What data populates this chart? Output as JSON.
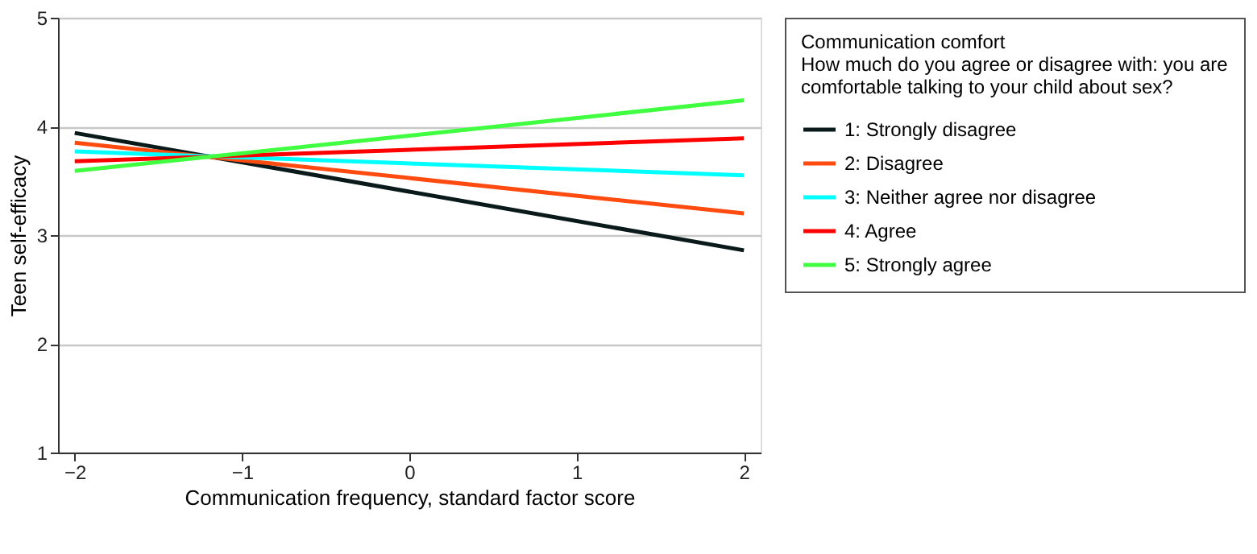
{
  "chart_data": {
    "type": "line",
    "x": [
      -2,
      2
    ],
    "series": [
      {
        "name": "1: Strongly disagree",
        "color": "#0a1a1a",
        "values": [
          3.94,
          2.86
        ]
      },
      {
        "name": "2: Disagree",
        "color": "#ff4b0f",
        "values": [
          3.85,
          3.2
        ]
      },
      {
        "name": "3: Neither agree nor disagree",
        "color": "#00ffff",
        "values": [
          3.77,
          3.55
        ]
      },
      {
        "name": "4: Agree",
        "color": "#ff0000",
        "values": [
          3.68,
          3.89
        ]
      },
      {
        "name": "5: Strongly agree",
        "color": "#40ff40",
        "values": [
          3.59,
          4.24
        ]
      }
    ],
    "xlabel": "Communication frequency, standard factor score",
    "ylabel": "Teen self-efficacy",
    "legend_title": "Communication comfort",
    "annotations": [
      "How much do you agree or disagree with: you are comfortable talking to your child about sex?"
    ],
    "xlim": [
      -2.1,
      2.1
    ],
    "xticks": [
      -2,
      -1,
      0,
      1,
      2
    ],
    "ylim": [
      1,
      5
    ],
    "yticks": [
      1,
      2,
      3,
      4,
      5
    ],
    "grid": "y",
    "legend": "right",
    "marker": "none",
    "line_style": "solid"
  }
}
